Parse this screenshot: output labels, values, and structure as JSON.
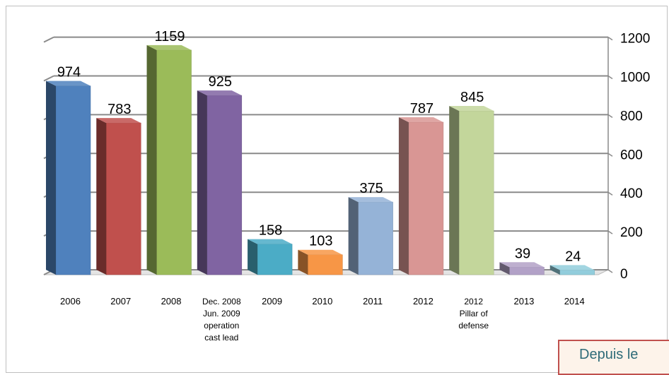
{
  "chart_data": {
    "type": "bar",
    "style": "3d-columns",
    "categories": [
      [
        "2006"
      ],
      [
        "2007"
      ],
      [
        "2008"
      ],
      [
        "Dec. 2008",
        "Jun. 2009",
        "operation",
        "cast lead"
      ],
      [
        "2009"
      ],
      [
        "2010"
      ],
      [
        "2011"
      ],
      [
        "2012"
      ],
      [
        "2012",
        "Pillar of",
        "defense"
      ],
      [
        "2013"
      ],
      [
        "2014"
      ]
    ],
    "values": [
      974,
      783,
      1159,
      925,
      158,
      103,
      375,
      787,
      845,
      39,
      24
    ],
    "data_labels": [
      "974",
      "783",
      "1159",
      "925",
      "158",
      "103",
      "375",
      "787",
      "845",
      "39",
      "24"
    ],
    "colors": [
      "#4f81bd",
      "#c0504d",
      "#9bbb59",
      "#8064a2",
      "#4bacc6",
      "#f79646",
      "#95b3d7",
      "#d99694",
      "#c3d69b",
      "#b2a1c7",
      "#92cddc"
    ],
    "ylim": [
      0,
      1200
    ],
    "yticks": [
      0,
      200,
      400,
      600,
      800,
      1000,
      1200
    ],
    "y_axis_side": "right",
    "grid": true,
    "legend": "none",
    "title": "",
    "xlabel": "",
    "ylabel": ""
  },
  "note": {
    "text": "Depuis le"
  }
}
